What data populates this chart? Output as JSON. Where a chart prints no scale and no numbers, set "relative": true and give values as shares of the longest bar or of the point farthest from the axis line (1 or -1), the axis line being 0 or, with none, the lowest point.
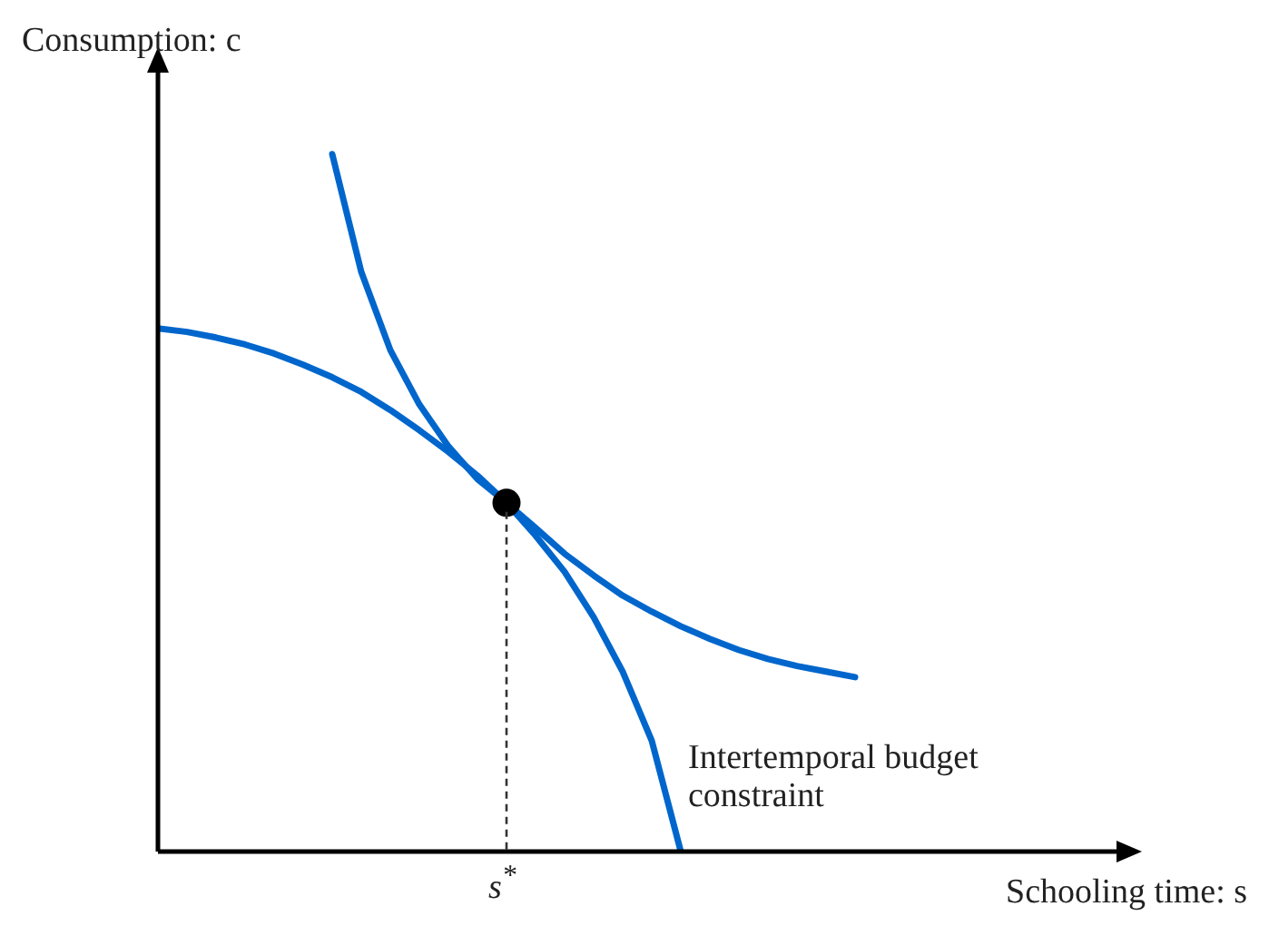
{
  "chart_data": {
    "type": "line",
    "relative": true,
    "xlabel": "Schooling time: s",
    "ylabel": "Consumption: c",
    "grid": false,
    "legend": false,
    "marker": "none",
    "line_style": "solid",
    "categories": [
      null,
      null,
      null,
      null,
      null,
      null,
      null,
      null,
      null,
      null,
      null,
      null,
      null,
      null,
      null,
      null,
      null,
      null,
      null,
      null,
      null,
      null,
      null,
      null,
      null,
      null,
      null,
      null,
      null,
      null,
      null,
      null,
      null,
      null
    ],
    "series": [
      {
        "color": "#0066cc",
        "values": [
          null,
          null,
          null,
          null,
          null,
          null,
          1.0,
          0.831,
          0.719,
          0.641,
          0.581,
          0.534,
          0.5,
          0.453,
          0.401,
          0.336,
          0.258,
          0.159,
          0,
          null,
          null,
          null,
          null,
          null,
          null,
          null,
          null,
          null,
          null,
          null,
          null,
          null,
          null,
          null
        ]
      },
      {
        "color": "#0066cc",
        "values": [
          0.75,
          0.745,
          0.737,
          0.727,
          0.714,
          0.698,
          0.68,
          0.659,
          0.633,
          0.604,
          0.573,
          0.539,
          0.5,
          0.464,
          0.427,
          0.396,
          0.367,
          0.344,
          0.323,
          0.305,
          0.289,
          0.276,
          0.266,
          0.258,
          0.25,
          null,
          null,
          null,
          null,
          null,
          null,
          null,
          null,
          null
        ]
      },
      {
        "color": "#000000",
        "marker": "circle",
        "values": [
          null,
          null,
          null,
          null,
          null,
          null,
          null,
          null,
          null,
          null,
          null,
          null,
          0.5,
          null,
          null,
          null,
          null,
          null,
          null,
          null,
          null,
          null,
          null,
          null,
          null,
          null,
          null,
          null,
          null,
          null,
          null,
          null,
          null,
          null
        ]
      }
    ],
    "annotations": [
      "Intertemporal budget constraint",
      "s$^{*}$"
    ]
  }
}
